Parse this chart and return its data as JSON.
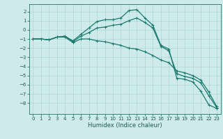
{
  "title": "",
  "xlabel": "Humidex (Indice chaleur)",
  "background_color": "#ceeaea",
  "grid_color": "#aed4d4",
  "line_color": "#1a7a6e",
  "xlim": [
    -0.5,
    23.5
  ],
  "ylim": [
    -9.2,
    2.8
  ],
  "xticks": [
    0,
    1,
    2,
    3,
    4,
    5,
    6,
    7,
    8,
    9,
    10,
    11,
    12,
    13,
    14,
    15,
    16,
    17,
    18,
    19,
    20,
    21,
    22,
    23
  ],
  "yticks": [
    -8,
    -7,
    -6,
    -5,
    -4,
    -3,
    -2,
    -1,
    0,
    1,
    2
  ],
  "series": [
    [
      0,
      1,
      2,
      3,
      4,
      5,
      6,
      7,
      8,
      9,
      10,
      11,
      12,
      13,
      14,
      15,
      16,
      17,
      18,
      19,
      20,
      21,
      22,
      23
    ],
    [
      -1.0,
      -1.0,
      -1.1,
      -0.8,
      -0.7,
      -1.2,
      -0.5,
      0.2,
      0.9,
      1.1,
      1.1,
      1.3,
      2.1,
      2.2,
      1.3,
      0.5,
      -1.7,
      -2.1,
      -5.3,
      -5.4,
      -5.7,
      -6.7,
      -8.2,
      -8.6
    ],
    [
      -1.0,
      -1.0,
      -1.1,
      -0.8,
      -0.7,
      -1.3,
      -0.7,
      -0.3,
      0.2,
      0.3,
      0.5,
      0.6,
      1.0,
      1.3,
      0.8,
      0.2,
      -1.8,
      -2.3,
      -4.8,
      -5.1,
      -5.3,
      -5.8,
      -7.2,
      -8.5
    ],
    [
      -1.0,
      -1.0,
      -1.1,
      -0.8,
      -0.8,
      -1.4,
      -1.0,
      -1.0,
      -1.2,
      -1.3,
      -1.5,
      -1.7,
      -2.0,
      -2.1,
      -2.4,
      -2.8,
      -3.3,
      -3.6,
      -4.5,
      -4.7,
      -5.0,
      -5.5,
      -6.8,
      -8.4
    ]
  ],
  "marker": "+",
  "markersize": 3,
  "linewidth": 0.9,
  "tick_labelsize": 5,
  "xlabel_fontsize": 6
}
